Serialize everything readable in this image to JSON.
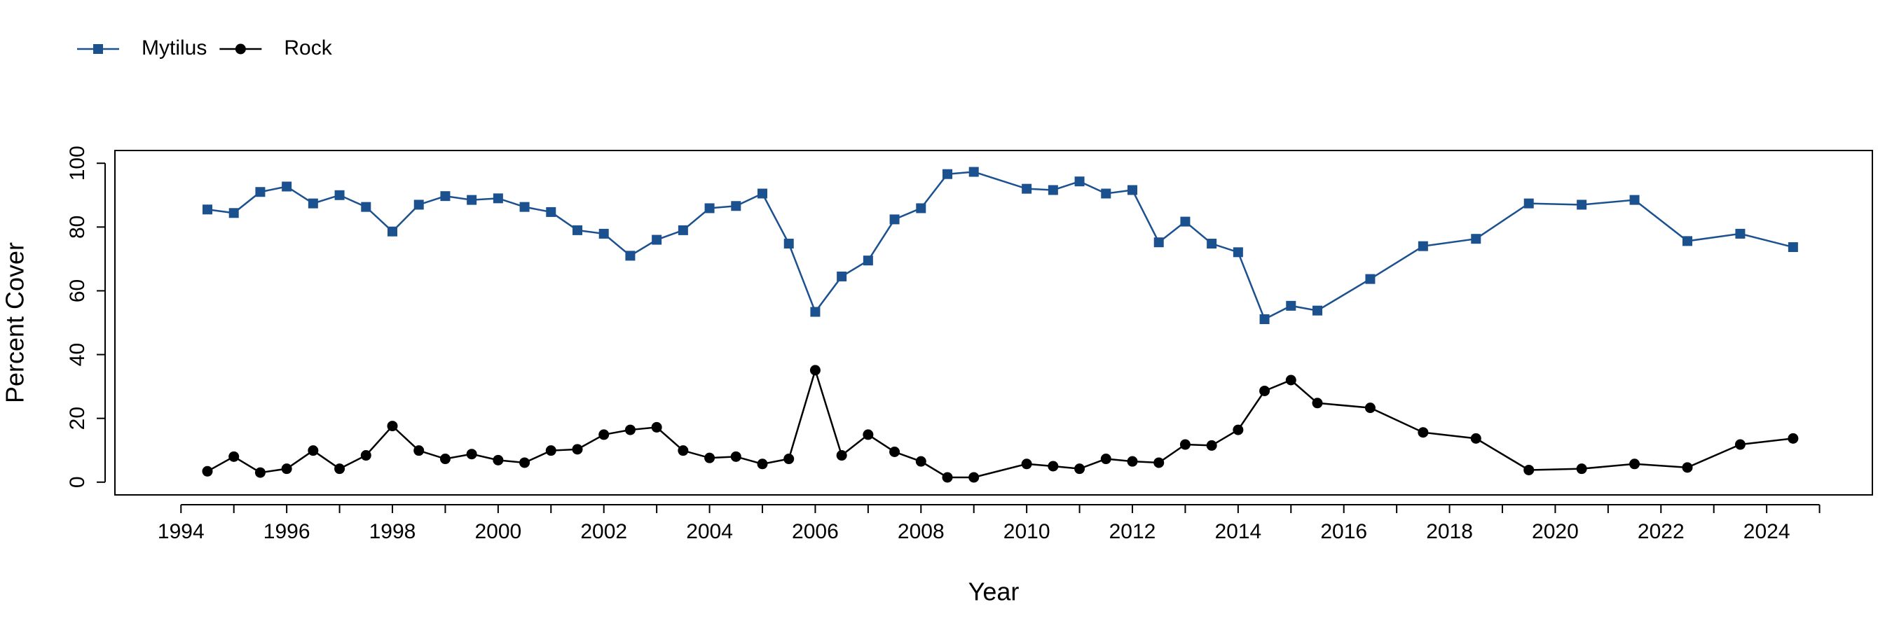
{
  "chart_data": {
    "type": "line",
    "x_label": "Year",
    "y_label": "Percent Cover",
    "legend": "top-left",
    "xlim": [
      1992.75,
      2026
    ],
    "ylim": [
      -4,
      104
    ],
    "xticks": [
      1994,
      1996,
      1998,
      2000,
      2002,
      2004,
      2006,
      2008,
      2010,
      2012,
      2014,
      2016,
      2018,
      2020,
      2022,
      2024
    ],
    "xminor_ticks": [
      1995,
      1997,
      1999,
      2001,
      2003,
      2005,
      2007,
      2009,
      2011,
      2013,
      2015,
      2017,
      2019,
      2021,
      2023,
      2025
    ],
    "yticks": [
      0,
      20,
      40,
      60,
      80,
      100
    ],
    "x": [
      1994.5,
      1995,
      1995.5,
      1996,
      1996.5,
      1997,
      1997.5,
      1998,
      1998.5,
      1999,
      1999.5,
      2000,
      2000.5,
      2001,
      2001.5,
      2002,
      2002.5,
      2003,
      2003.5,
      2004,
      2004.5,
      2005,
      2005.5,
      2006,
      2006.5,
      2007,
      2007.5,
      2008,
      2008.5,
      2009,
      2010,
      2010.5,
      2011,
      2011.5,
      2012,
      2012.5,
      2013,
      2013.5,
      2014,
      2014.5,
      2015,
      2015.5,
      2016.5,
      2017.5,
      2018.5,
      2019.5,
      2020.5,
      2021.5,
      2022.5,
      2023.5,
      2024.5
    ],
    "series": [
      {
        "name": "Mytilus",
        "color": "#1c5190",
        "marker": "square",
        "values": [
          85.5,
          84.4,
          91,
          92.7,
          87.4,
          90,
          86.3,
          78.6,
          87,
          89.7,
          88.5,
          89,
          86.3,
          84.7,
          79,
          77.9,
          71,
          76,
          79,
          85.9,
          86.6,
          90.5,
          74.8,
          53.4,
          64.5,
          69.5,
          82.4,
          85.9,
          96.6,
          97.3,
          92,
          91.6,
          94.3,
          90.5,
          91.6,
          75.2,
          81.7,
          74.8,
          72.1,
          51.1,
          55.3,
          53.8,
          63.7,
          74,
          76.3,
          87.4,
          87,
          88.5,
          75.6,
          77.9,
          73.7
        ]
      },
      {
        "name": "Rock",
        "color": "#000000",
        "marker": "circle",
        "values": [
          3.4,
          8,
          3,
          4.2,
          9.9,
          4.2,
          8.4,
          17.6,
          9.9,
          7.3,
          8.8,
          6.9,
          6.1,
          9.9,
          10.3,
          14.9,
          16.4,
          17.2,
          9.9,
          7.6,
          8,
          5.7,
          7.3,
          35.1,
          8.4,
          14.9,
          9.5,
          6.5,
          1.5,
          1.5,
          5.7,
          5,
          4.2,
          7.3,
          6.5,
          6.1,
          11.8,
          11.5,
          16.4,
          28.6,
          32,
          24.8,
          23.3,
          15.6,
          13.7,
          3.8,
          4.2,
          5.7,
          4.6,
          11.8,
          13.7
        ]
      }
    ]
  }
}
